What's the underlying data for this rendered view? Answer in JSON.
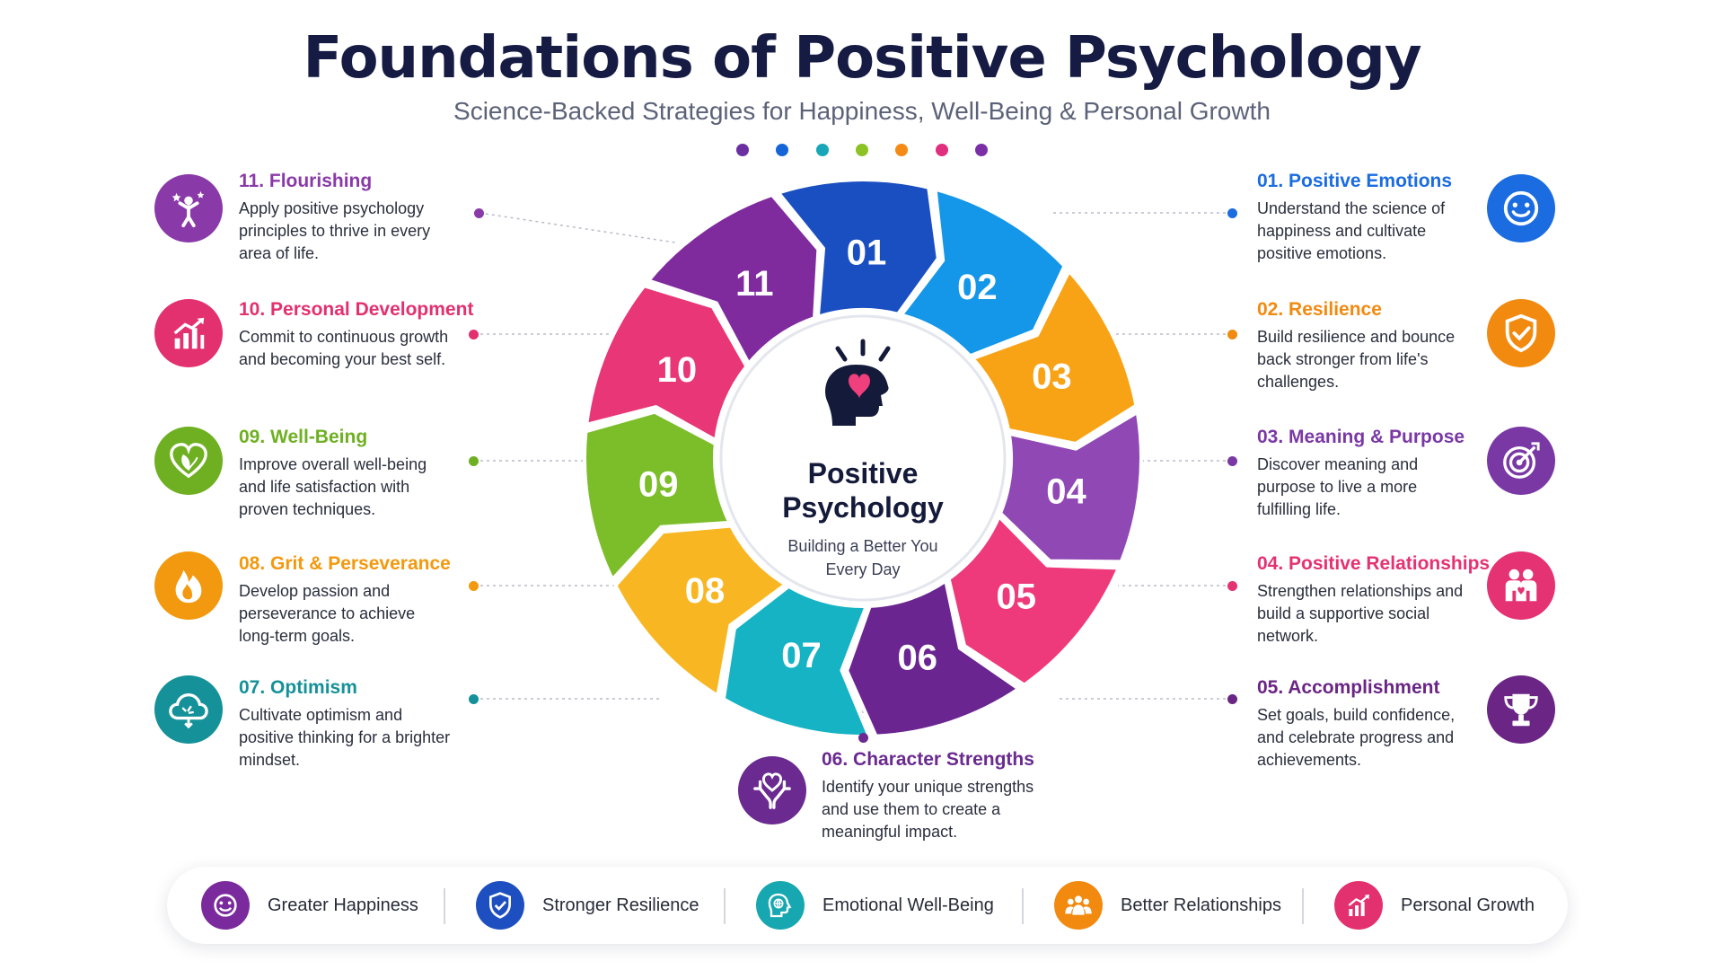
{
  "header": {
    "title": "Foundations of Positive Psychology",
    "subtitle": "Science-Backed Strategies for Happiness, Well-Being & Personal Growth"
  },
  "dot_colors": [
    "#6a2fa0",
    "#1565d8",
    "#18a6b8",
    "#8cc224",
    "#f58a14",
    "#e02f7e",
    "#7a2fa6"
  ],
  "center": {
    "title_line1": "Positive",
    "title_line2": "Psychology",
    "tagline_line1": "Building a Better You",
    "tagline_line2": "Every Day"
  },
  "segments": [
    {
      "number": "01",
      "color": "#1a4fc2"
    },
    {
      "number": "02",
      "color": "#1497e8"
    },
    {
      "number": "03",
      "color": "#f8a315"
    },
    {
      "number": "04",
      "color": "#9048b4"
    },
    {
      "number": "05",
      "color": "#ee3a7a"
    },
    {
      "number": "06",
      "color": "#6a2591"
    },
    {
      "number": "07",
      "color": "#16b3c4"
    },
    {
      "number": "08",
      "color": "#f8b722"
    },
    {
      "number": "09",
      "color": "#7cbe2a"
    },
    {
      "number": "10",
      "color": "#e83676"
    },
    {
      "number": "11",
      "color": "#7f2b9e"
    }
  ],
  "items": {
    "flourishing": {
      "heading": "11. Flourishing",
      "desc": "Apply positive psychology principles to thrive in every area of life.",
      "color": "#8a3aa8",
      "icon": "flourishing-icon"
    },
    "personal_development": {
      "heading": "10. Personal Development",
      "desc": "Commit to continuous growth and becoming your best self.",
      "color": "#e3306f",
      "icon": "growth-chart-icon"
    },
    "well_being": {
      "heading": "09. Well-Being",
      "desc": "Improve overall well-being and life satisfaction with proven techniques.",
      "color": "#6fb022",
      "icon": "heart-leaf-icon"
    },
    "grit": {
      "heading": "08. Grit & Perseverance",
      "desc": "Develop passion and perseverance to achieve long-term goals.",
      "color": "#f2990f",
      "icon": "flame-icon"
    },
    "optimism": {
      "heading": "07. Optimism",
      "desc": "Cultivate optimism and positive thinking for a brighter mindset.",
      "color": "#159199",
      "icon": "cloud-icon"
    },
    "positive_emotions": {
      "heading": "01. Positive Emotions",
      "desc": "Understand the science of happiness and cultivate positive emotions.",
      "color": "#1a6ce0",
      "icon": "smiley-icon"
    },
    "resilience": {
      "heading": "02. Resilience",
      "desc": "Build resilience and bounce back stronger from life's challenges.",
      "color": "#f28a10",
      "icon": "shield-check-icon"
    },
    "meaning": {
      "heading": "03. Meaning & Purpose",
      "desc": "Discover meaning and purpose to live a more fulfilling life.",
      "color": "#7a38a4",
      "icon": "target-icon"
    },
    "relationships": {
      "heading": "04. Positive Relationships",
      "desc": "Strengthen relationships and build a supportive social network.",
      "color": "#e43273",
      "icon": "people-icon"
    },
    "accomplishment": {
      "heading": "05. Accomplishment",
      "desc": "Set goals, build confidence, and celebrate progress and achievements.",
      "color": "#6a2585",
      "icon": "trophy-icon"
    },
    "character": {
      "heading": "06. Character Strengths",
      "desc": "Identify your unique strengths and use them to create a meaningful impact.",
      "color": "#6a2a90",
      "icon": "hands-heart-icon"
    }
  },
  "benefits": [
    {
      "label": "Greater Happiness",
      "color": "#7a2a9c",
      "icon": "smiley-icon"
    },
    {
      "label": "Stronger Resilience",
      "color": "#1e4fc0",
      "icon": "shield-check-icon"
    },
    {
      "label": "Emotional Well-Being",
      "color": "#17a7b0",
      "icon": "mind-globe-icon"
    },
    {
      "label": "Better Relationships",
      "color": "#f28a10",
      "icon": "people-icon"
    },
    {
      "label": "Personal Growth",
      "color": "#e3306f",
      "icon": "growth-chart-icon"
    }
  ]
}
